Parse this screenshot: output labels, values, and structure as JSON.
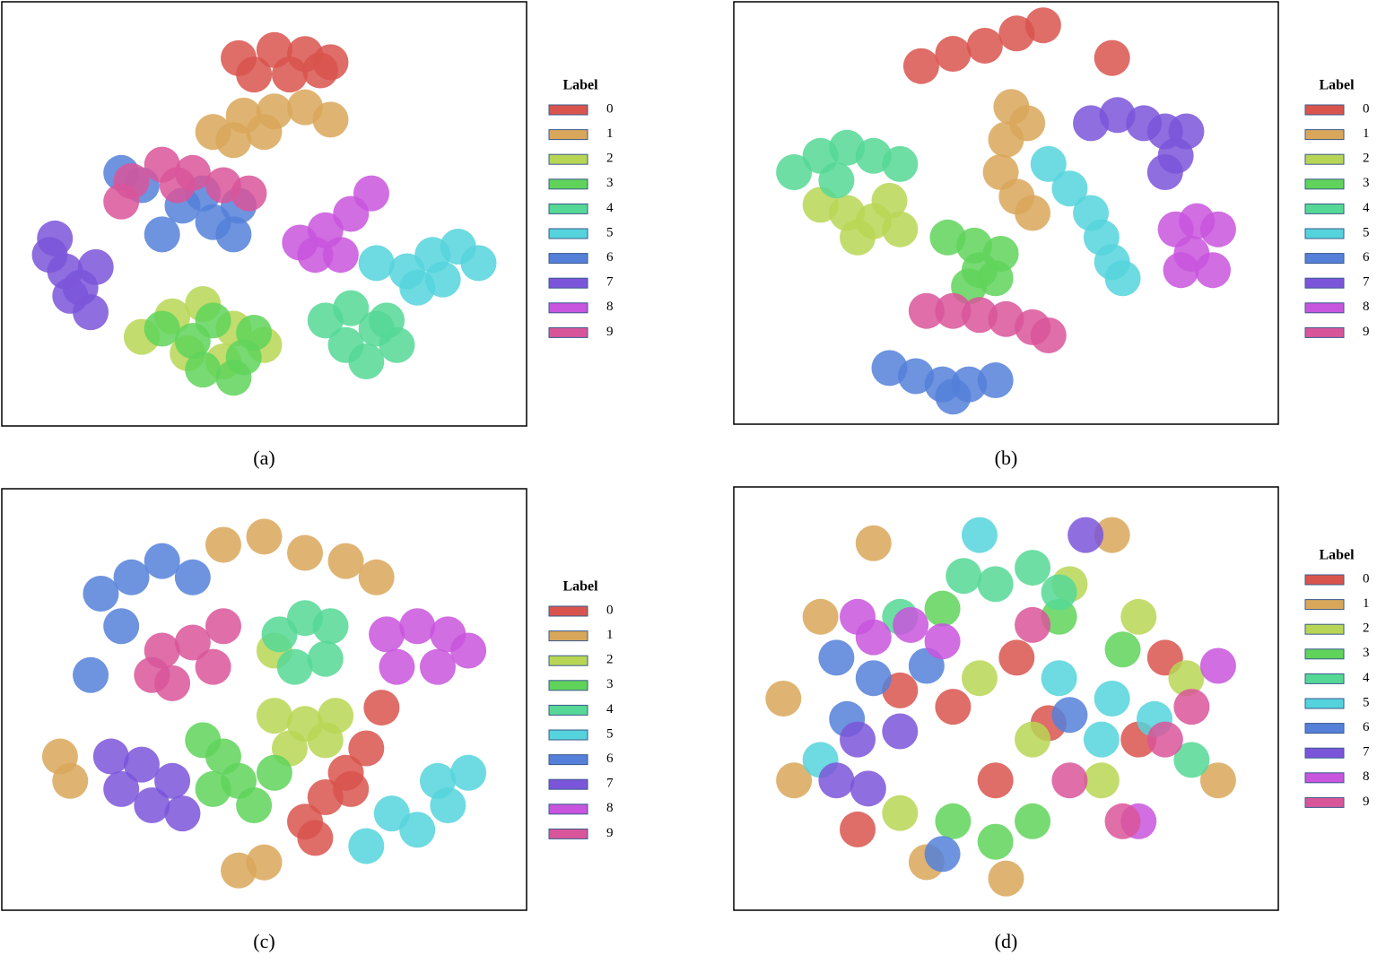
{
  "chart_data": [
    {
      "type": "scatter",
      "caption": "(a)",
      "legend_title": "Label",
      "xlim": [
        0,
        100
      ],
      "ylim": [
        0,
        100
      ],
      "series": [
        {
          "name": "0",
          "color": "#d9544d",
          "x": [
            45,
            52,
            58,
            63,
            48,
            55,
            61
          ],
          "y": [
            88,
            90,
            89,
            87,
            84,
            84,
            85
          ]
        },
        {
          "name": "1",
          "color": "#d9a75a",
          "x": [
            40,
            46,
            52,
            58,
            63,
            50,
            44
          ],
          "y": [
            70,
            74,
            75,
            76,
            73,
            70,
            68
          ]
        },
        {
          "name": "2",
          "color": "#b8d655",
          "x": [
            26,
            32,
            38,
            44,
            50,
            35,
            42
          ],
          "y": [
            20,
            25,
            28,
            22,
            18,
            16,
            14
          ]
        },
        {
          "name": "3",
          "color": "#5fd35a",
          "x": [
            30,
            36,
            40,
            46,
            48,
            38,
            44
          ],
          "y": [
            22,
            19,
            24,
            15,
            21,
            12,
            10
          ]
        },
        {
          "name": "4",
          "color": "#55d895",
          "x": [
            62,
            67,
            72,
            76,
            66,
            70,
            74
          ],
          "y": [
            24,
            27,
            22,
            18,
            18,
            14,
            24
          ]
        },
        {
          "name": "5",
          "color": "#55d3dc",
          "x": [
            72,
            78,
            83,
            88,
            92,
            85,
            80
          ],
          "y": [
            38,
            36,
            40,
            42,
            38,
            34,
            32
          ]
        },
        {
          "name": "6",
          "color": "#5580d9",
          "x": [
            22,
            26,
            34,
            40,
            44,
            30,
            38,
            45
          ],
          "y": [
            60,
            57,
            52,
            48,
            45,
            45,
            55,
            52
          ]
        },
        {
          "name": "7",
          "color": "#7b55d9",
          "x": [
            8,
            11,
            14,
            16,
            12,
            9,
            17
          ],
          "y": [
            40,
            36,
            32,
            26,
            30,
            44,
            37
          ]
        },
        {
          "name": "8",
          "color": "#c855dd",
          "x": [
            57,
            62,
            67,
            71,
            65,
            60
          ],
          "y": [
            43,
            46,
            50,
            55,
            40,
            40
          ]
        },
        {
          "name": "9",
          "color": "#d9559a",
          "x": [
            24,
            30,
            36,
            42,
            47,
            22,
            33
          ],
          "y": [
            58,
            62,
            60,
            57,
            55,
            53,
            57
          ]
        }
      ]
    },
    {
      "type": "scatter",
      "caption": "(b)",
      "legend_title": "Label",
      "xlim": [
        0,
        100
      ],
      "ylim": [
        0,
        100
      ],
      "series": [
        {
          "name": "0",
          "color": "#d9544d",
          "x": [
            34,
            40,
            46,
            52,
            57,
            70
          ],
          "y": [
            86,
            89,
            91,
            94,
            96,
            88
          ]
        },
        {
          "name": "1",
          "color": "#d9a75a",
          "x": [
            51,
            50,
            49,
            52,
            55,
            54
          ],
          "y": [
            76,
            68,
            60,
            54,
            50,
            72
          ]
        },
        {
          "name": "2",
          "color": "#b8d655",
          "x": [
            15,
            20,
            25,
            30,
            22,
            28
          ],
          "y": [
            52,
            50,
            48,
            46,
            44,
            53
          ]
        },
        {
          "name": "3",
          "color": "#5fd35a",
          "x": [
            39,
            44,
            49,
            45,
            43,
            48
          ],
          "y": [
            44,
            42,
            40,
            36,
            32,
            34
          ]
        },
        {
          "name": "4",
          "color": "#55d895",
          "x": [
            10,
            15,
            20,
            25,
            30,
            18
          ],
          "y": [
            60,
            64,
            66,
            64,
            62,
            58
          ]
        },
        {
          "name": "5",
          "color": "#55d3dc",
          "x": [
            58,
            62,
            66,
            68,
            70,
            72
          ],
          "y": [
            62,
            56,
            50,
            44,
            38,
            34
          ]
        },
        {
          "name": "6",
          "color": "#5580d9",
          "x": [
            28,
            33,
            38,
            43,
            48,
            40
          ],
          "y": [
            12,
            10,
            8,
            8,
            9,
            5
          ]
        },
        {
          "name": "7",
          "color": "#7b55d9",
          "x": [
            66,
            71,
            76,
            80,
            84,
            82,
            80
          ],
          "y": [
            72,
            74,
            72,
            70,
            70,
            64,
            60
          ]
        },
        {
          "name": "8",
          "color": "#c855dd",
          "x": [
            82,
            86,
            90,
            85,
            89,
            83
          ],
          "y": [
            46,
            48,
            46,
            40,
            36,
            36
          ]
        },
        {
          "name": "9",
          "color": "#d9559a",
          "x": [
            35,
            40,
            45,
            50,
            55,
            58
          ],
          "y": [
            26,
            26,
            25,
            24,
            22,
            20
          ]
        }
      ]
    },
    {
      "type": "scatter",
      "caption": "(c)",
      "legend_title": "Label",
      "xlim": [
        0,
        100
      ],
      "ylim": [
        0,
        100
      ],
      "series": [
        {
          "name": "0",
          "color": "#d9544d",
          "x": [
            58,
            62,
            66,
            70,
            73,
            60,
            67
          ],
          "y": [
            20,
            26,
            32,
            38,
            48,
            16,
            28
          ]
        },
        {
          "name": "1",
          "color": "#d9a75a",
          "x": [
            42,
            50,
            58,
            66,
            72,
            10,
            12,
            45,
            50
          ],
          "y": [
            88,
            90,
            86,
            84,
            80,
            36,
            30,
            8,
            10
          ]
        },
        {
          "name": "2",
          "color": "#b8d655",
          "x": [
            52,
            58,
            62,
            55,
            64,
            52
          ],
          "y": [
            46,
            44,
            40,
            38,
            46,
            62
          ]
        },
        {
          "name": "3",
          "color": "#5fd35a",
          "x": [
            38,
            42,
            45,
            48,
            40,
            52
          ],
          "y": [
            40,
            36,
            30,
            24,
            28,
            32
          ]
        },
        {
          "name": "4",
          "color": "#55d895",
          "x": [
            53,
            58,
            63,
            62,
            56
          ],
          "y": [
            66,
            70,
            68,
            60,
            58
          ]
        },
        {
          "name": "5",
          "color": "#55d3dc",
          "x": [
            75,
            80,
            86,
            90,
            84,
            70
          ],
          "y": [
            22,
            18,
            24,
            32,
            30,
            14
          ]
        },
        {
          "name": "6",
          "color": "#5580d9",
          "x": [
            18,
            24,
            30,
            36,
            22,
            16
          ],
          "y": [
            76,
            80,
            84,
            80,
            68,
            56
          ]
        },
        {
          "name": "7",
          "color": "#7b55d9",
          "x": [
            20,
            26,
            32,
            28,
            22,
            34
          ],
          "y": [
            36,
            34,
            30,
            24,
            28,
            22
          ]
        },
        {
          "name": "8",
          "color": "#c855dd",
          "x": [
            74,
            80,
            86,
            90,
            84,
            76
          ],
          "y": [
            66,
            68,
            66,
            62,
            58,
            58
          ]
        },
        {
          "name": "9",
          "color": "#d9559a",
          "x": [
            30,
            36,
            42,
            40,
            32,
            28
          ],
          "y": [
            62,
            64,
            68,
            58,
            54,
            56
          ]
        }
      ]
    },
    {
      "type": "scatter",
      "caption": "(d)",
      "legend_title": "Label",
      "xlim": [
        0,
        100
      ],
      "ylim": [
        0,
        100
      ],
      "series": [
        {
          "name": "0",
          "color": "#d9544d",
          "x": [
            30,
            40,
            52,
            58,
            75,
            22,
            80,
            48
          ],
          "y": [
            52,
            48,
            60,
            44,
            40,
            18,
            60,
            30
          ]
        },
        {
          "name": "1",
          "color": "#d9a75a",
          "x": [
            8,
            10,
            15,
            25,
            70,
            90,
            50,
            35
          ],
          "y": [
            50,
            30,
            70,
            88,
            90,
            30,
            6,
            10
          ]
        },
        {
          "name": "2",
          "color": "#b8d655",
          "x": [
            45,
            62,
            75,
            84,
            55,
            68,
            30
          ],
          "y": [
            55,
            78,
            70,
            55,
            40,
            30,
            22
          ]
        },
        {
          "name": "3",
          "color": "#5fd35a",
          "x": [
            48,
            55,
            40,
            72,
            60,
            38
          ],
          "y": [
            15,
            20,
            20,
            62,
            70,
            72
          ]
        },
        {
          "name": "4",
          "color": "#55d895",
          "x": [
            48,
            55,
            60,
            42,
            30,
            85
          ],
          "y": [
            78,
            82,
            76,
            80,
            70,
            35
          ]
        },
        {
          "name": "5",
          "color": "#55d3dc",
          "x": [
            70,
            78,
            68,
            60,
            15,
            45
          ],
          "y": [
            50,
            45,
            40,
            55,
            35,
            90
          ]
        },
        {
          "name": "6",
          "color": "#5580d9",
          "x": [
            18,
            25,
            20,
            35,
            62,
            38
          ],
          "y": [
            60,
            55,
            45,
            58,
            46,
            12
          ]
        },
        {
          "name": "7",
          "color": "#7b55d9",
          "x": [
            18,
            24,
            22,
            30,
            65
          ],
          "y": [
            30,
            28,
            40,
            42,
            90
          ]
        },
        {
          "name": "8",
          "color": "#c855dd",
          "x": [
            25,
            32,
            38,
            90,
            75,
            22
          ],
          "y": [
            65,
            68,
            64,
            58,
            20,
            70
          ]
        },
        {
          "name": "9",
          "color": "#d9559a",
          "x": [
            80,
            72,
            62,
            55,
            85
          ],
          "y": [
            40,
            20,
            30,
            68,
            48
          ]
        }
      ]
    }
  ]
}
